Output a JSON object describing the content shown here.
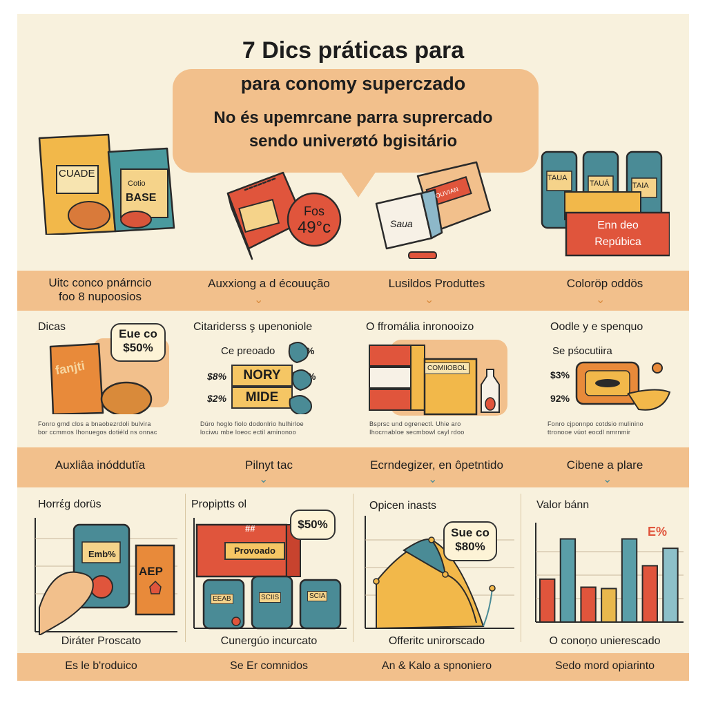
{
  "header": {
    "title": "7 Dics práticas para",
    "subtitle_line1": "para conomy superczado",
    "subtitle_line2": "No és upemrcane parra suprercado",
    "subtitle_line3": "sendo univerøtó bgisitário"
  },
  "illustrations": {
    "bag_label_1": "CUADE",
    "bag_label_2a": "Cotio",
    "bag_label_2b": "BASE",
    "price_badge": "Fos 49°c",
    "price_badge_line1": "Fos",
    "price_badge_line2": "49°c",
    "note_label": "Saua",
    "box_label": "OUVIAN",
    "jar_label_1": "TAUA",
    "jar_label_2": "TAUÁ",
    "jar_label_3": "TAIA",
    "sign_line1": "Enn deo",
    "sign_line2": "Repúbica"
  },
  "band1": {
    "items": [
      {
        "line1": "Uitc conco pnárncio",
        "line2": "foo 8 nupoosios"
      },
      {
        "line1": "Auxxiong a d écouução",
        "line2": ""
      },
      {
        "line1": "Lusildos Produttes",
        "line2": ""
      },
      {
        "line1": "Colorӧp oddös",
        "line2": ""
      }
    ]
  },
  "row2": {
    "col1": {
      "title": "Dicas",
      "badge_line1": "Eue co",
      "badge_line2": "$50%",
      "pack_label": "fanjti",
      "caption_line1": "Fonro gmd clos a bnaobezrdoli bulvira",
      "caption_line2": "bor ccmmos Ihonuegos dotiéld ns onnac"
    },
    "col2": {
      "title": "Citarideгss ş upenoniole",
      "row1_label": "Ce preoado",
      "row1_pct": "%",
      "row2_price": "$8%",
      "row2_label": "NORY",
      "row2_pct": "%",
      "row3_price": "$2%",
      "row3_label": "MIDE",
      "caption_line1": "Dúro hoglo fiolo dodonlrio hulhirloe",
      "caption_line2": "lociwu mbe loeoc ectil aminonoo"
    },
    "col3": {
      "title": "O ffromália inronooizo",
      "box_label": "COMIIOBOL",
      "caption_line1": "Bsprsc und ogrenectl. Uhie aro",
      "caption_line2": "Ihocrnabloe secmbowl cayl rdoo"
    },
    "col4": {
      "title": "Oodle y e spenquo",
      "subtitle": "Se pśocutiira",
      "pct1": "$3%",
      "pct2": "92%",
      "caption_line1": "Fonro cjponnpo cotdsio mulinino",
      "caption_line2": "ttronooe vúot eocdl nmrnmir"
    }
  },
  "band2": {
    "items": [
      {
        "label": "Auxliâa inóddutïa"
      },
      {
        "label": "Pilnyt tac"
      },
      {
        "label": "Ecrndegizer, en ôpetntido"
      },
      {
        "label": "Cibene a plare"
      }
    ]
  },
  "row3": {
    "col1": {
      "title": "Horrέg dorüs",
      "bag_label": "Emb%",
      "pack_label": "AEP"
    },
    "col2": {
      "title": "Propiptts ol",
      "badge": "$50%",
      "box_label": "Provoado",
      "box_top": "##",
      "jar1": "EEAB",
      "jar2": "SCIIS",
      "jar3": "SCIA"
    },
    "col3": {
      "title": "Opicen inasts",
      "badge_line1": "Sue co",
      "badge_line2": "$80%"
    },
    "col4": {
      "title": "Valor bánn",
      "pct": "E%"
    }
  },
  "bottom_captions": [
    "Diráter Proscato",
    "Cunergúo incurcato",
    "Offeritc unirorscado",
    "O conoņo unierescado"
  ],
  "footer_band": [
    "Es le b'roduico",
    "Se Er comnidos",
    "An & Kalo a spnoniero",
    "Sedo mord opiarinto"
  ],
  "chart_data": {
    "type": "bar",
    "categories": [
      "1",
      "2",
      "3",
      "4",
      "5",
      "6",
      "7"
    ],
    "values": [
      32,
      62,
      26,
      25,
      62,
      42,
      55
    ],
    "colors": [
      "#e0553c",
      "#5a9ea8",
      "#e0553c",
      "#e8b84d",
      "#5a9ea8",
      "#e0553c",
      "#8dc0c9"
    ],
    "annotation": "E%",
    "ylim": [
      0,
      70
    ],
    "grid": true
  },
  "colors": {
    "background": "#f8f1dd",
    "band": "#f2c08c",
    "orange_red": "#e0553c",
    "teal": "#4a8b96",
    "mustard": "#e8b84d"
  }
}
